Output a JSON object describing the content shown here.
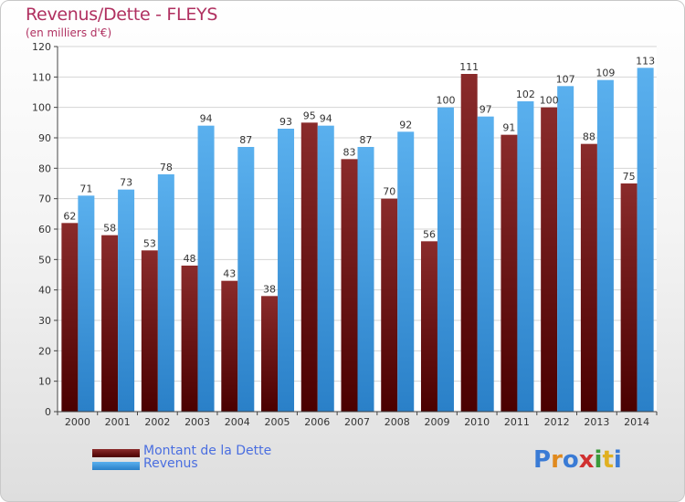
{
  "header": {
    "title": "Revenus/Dette - FLEYS",
    "subtitle": "(en milliers d'€)"
  },
  "legend": {
    "items": [
      {
        "label": "Montant de la Dette",
        "color": "#7b1a1a"
      },
      {
        "label": "Revenus",
        "color": "#4aa3e3"
      }
    ]
  },
  "logo": {
    "text": "Proxiti",
    "letter_colors": [
      "#3a7bd5",
      "#e08a1e",
      "#3a7bd5",
      "#d03030",
      "#3a9a3a",
      "#e0b020",
      "#3a7bd5"
    ]
  },
  "colors": {
    "debt_top": "#8a2b2b",
    "debt_bottom": "#4a0000",
    "revenue_top": "#5ab0ee",
    "revenue_bottom": "#2a80c8",
    "grid": "#d4d4d4",
    "axis": "#444444"
  },
  "chart_data": {
    "type": "bar",
    "title": "Revenus/Dette - FLEYS",
    "subtitle": "(en milliers d'€)",
    "categories": [
      "2000",
      "2001",
      "2002",
      "2003",
      "2004",
      "2005",
      "2006",
      "2007",
      "2008",
      "2009",
      "2010",
      "2011",
      "2012",
      "2013",
      "2014"
    ],
    "series": [
      {
        "name": "Montant de la Dette",
        "values": [
          62,
          58,
          53,
          48,
          43,
          38,
          95,
          83,
          70,
          56,
          111,
          91,
          100,
          88,
          75
        ]
      },
      {
        "name": "Revenus",
        "values": [
          71,
          73,
          78,
          94,
          87,
          93,
          94,
          87,
          92,
          100,
          97,
          102,
          107,
          109,
          113
        ]
      }
    ],
    "ylim": [
      0,
      120
    ],
    "yticks": [
      0,
      10,
      20,
      30,
      40,
      50,
      60,
      70,
      80,
      90,
      100,
      110,
      120
    ],
    "grid": true,
    "legend_position": "bottom-left"
  }
}
